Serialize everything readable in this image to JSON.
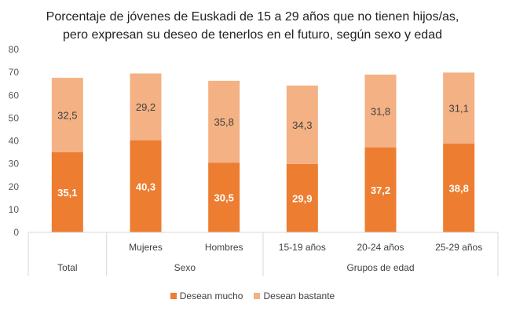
{
  "chart_data": {
    "type": "bar",
    "stacked": true,
    "title_lines": [
      "Porcentaje de jóvenes de Euskadi de 15 a 29 años que no tienen hijos/as,",
      "pero expresan su deseo de tenerlos en el futuro, según sexo y edad"
    ],
    "categories": [
      "",
      "Mujeres",
      "Hombres",
      "15-19 años",
      "20-24 años",
      "25-29 años"
    ],
    "groups": [
      {
        "label": "Total",
        "span": 1
      },
      {
        "label": "Sexo",
        "span": 2
      },
      {
        "label": "Grupos de edad",
        "span": 3
      }
    ],
    "series": [
      {
        "name": "Desean mucho",
        "color": "#ED7D31",
        "values": [
          35.1,
          40.3,
          30.5,
          29.9,
          37.2,
          38.8
        ],
        "labels": [
          "35,1",
          "40,3",
          "30,5",
          "29,9",
          "37,2",
          "38,8"
        ]
      },
      {
        "name": "Desean bastante",
        "color": "#F4B183",
        "values": [
          32.5,
          29.2,
          35.8,
          34.3,
          31.8,
          31.1
        ],
        "labels": [
          "32,5",
          "29,2",
          "35,8",
          "34,3",
          "31,8",
          "31,1"
        ]
      }
    ],
    "ylim": [
      0,
      80
    ],
    "yticks": [
      0,
      10,
      20,
      30,
      40,
      50,
      60,
      70,
      80
    ],
    "grid": false,
    "legend": "bottom"
  }
}
